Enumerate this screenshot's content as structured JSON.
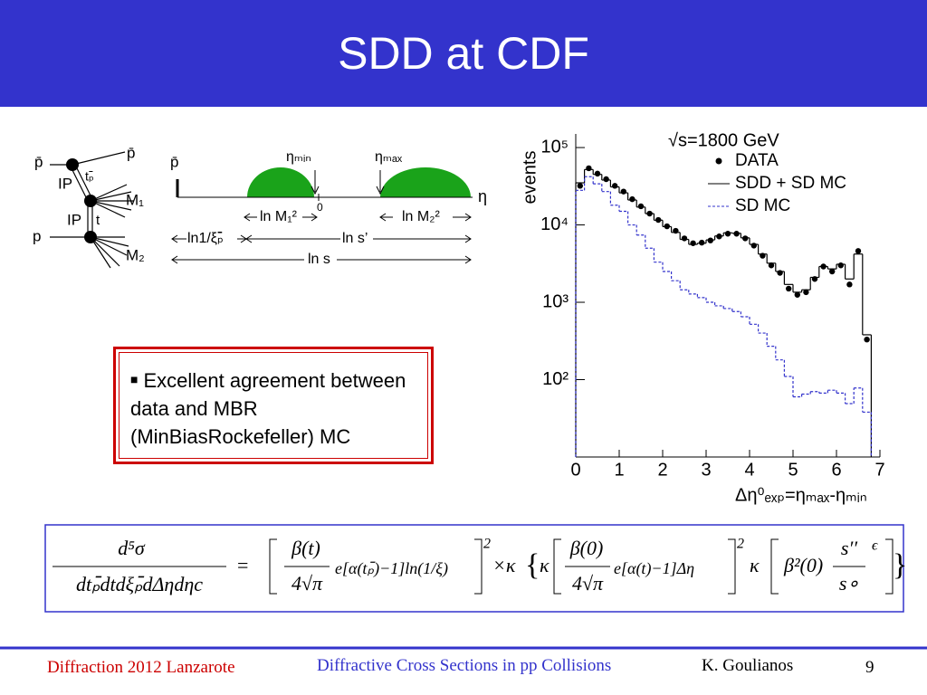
{
  "header": {
    "title": "SDD at CDF"
  },
  "diagram": {
    "left_labels": [
      "p̄",
      "p̄",
      "IP",
      "tₚ̄",
      "M₁",
      "IP",
      "t",
      "p",
      "M₂"
    ],
    "rapidity_labels": [
      "p̄",
      "ηₘᵢₙ",
      "ηₘₐₓ",
      "0",
      "η",
      "ln M₁²",
      "ln M₂²",
      "ln1/ξₚ̄",
      "ln s’",
      "ln s"
    ]
  },
  "bullet": {
    "text": "Excellent agreement between data and MBR (MinBiasRockefeller) MC"
  },
  "chart_data": {
    "type": "histogram",
    "title": "√s=1800 GeV",
    "x_label": "Δη⁰ₑₓₚ=ηₘₐₓ-ηₘᵢₙ",
    "y_label": "events",
    "bins": [
      0,
      0.2,
      0.4,
      0.6,
      0.8,
      1,
      1.2,
      1.4,
      1.6,
      1.8,
      2,
      2.2,
      2.4,
      2.6,
      2.8,
      3,
      3.2,
      3.4,
      3.6,
      3.8,
      4,
      4.2,
      4.4,
      4.6,
      4.8,
      5,
      5.2,
      5.4,
      5.6,
      5.8,
      6,
      6.2,
      6.4,
      6.6,
      6.8
    ],
    "series": [
      {
        "name": "DATA",
        "color": "#000000",
        "style": "points",
        "values": [
          32000,
          54000,
          46000,
          39000,
          32000,
          27000,
          21500,
          17400,
          14000,
          11600,
          9600,
          8400,
          6700,
          5800,
          5900,
          6300,
          7100,
          7700,
          7700,
          6700,
          5400,
          4000,
          3000,
          2400,
          1500,
          1250,
          1350,
          2000,
          2900,
          2500,
          3000,
          1700,
          4600,
          330
        ]
      },
      {
        "name": "SDD + SD MC",
        "color": "#000000",
        "style": "solid",
        "values": [
          35000,
          52000,
          45000,
          38000,
          31000,
          26000,
          21000,
          17000,
          14000,
          11500,
          9500,
          8000,
          6500,
          5600,
          5800,
          6400,
          7200,
          7900,
          7800,
          6800,
          5600,
          4200,
          3200,
          2500,
          1700,
          1350,
          1450,
          2100,
          2900,
          2700,
          3100,
          2000,
          4200,
          380
        ]
      },
      {
        "name": "SD MC",
        "color": "#3333cc",
        "style": "dashed",
        "values": [
          28000,
          42000,
          34000,
          27000,
          18000,
          15000,
          10000,
          7400,
          5000,
          3300,
          2500,
          1900,
          1450,
          1280,
          1150,
          1000,
          900,
          830,
          760,
          650,
          520,
          400,
          270,
          180,
          110,
          60,
          65,
          70,
          67,
          73,
          67,
          49,
          78,
          38
        ]
      }
    ],
    "xlim": [
      0,
      7
    ],
    "xticks": [
      0,
      1,
      2,
      3,
      4,
      5,
      6,
      7
    ],
    "ylim": [
      10,
      150000
    ],
    "log_y": true,
    "yticks": [
      {
        "value": 100,
        "label": "10²"
      },
      {
        "value": 1000,
        "label": "10³"
      },
      {
        "value": 10000,
        "label": "10⁴"
      },
      {
        "value": 100000,
        "label": "10⁵"
      }
    ],
    "legend": "upper right"
  },
  "formula": {
    "lhs_numerator": "d⁵σ",
    "lhs_denominator": "dtₚ̄dtdξₚ̄dΔηdηc",
    "equals": "=",
    "t1_numerator": "β(t)",
    "t1_denominator": "4√π",
    "t1_exp": "e[α(tₚ̄)−1]ln(1/ξ)",
    "t1_power": "2",
    "times": "×κ",
    "kappa": "κ",
    "t2_numerator": "β(0)",
    "t2_denominator": "4√π",
    "t2_exp": "e[α(t)−1]Δη",
    "t2_power": "2",
    "kappa2": "κ",
    "t3_beta": "β²(0)",
    "t3_numerator": "s′′",
    "t3_denominator": "s∘",
    "t3_power": "ϵ"
  },
  "footer": {
    "left": "Diffraction 2012 Lanzarote",
    "center": "Diffractive Cross Sections in pp Collisions",
    "author": "K. Goulianos",
    "page": "9"
  }
}
